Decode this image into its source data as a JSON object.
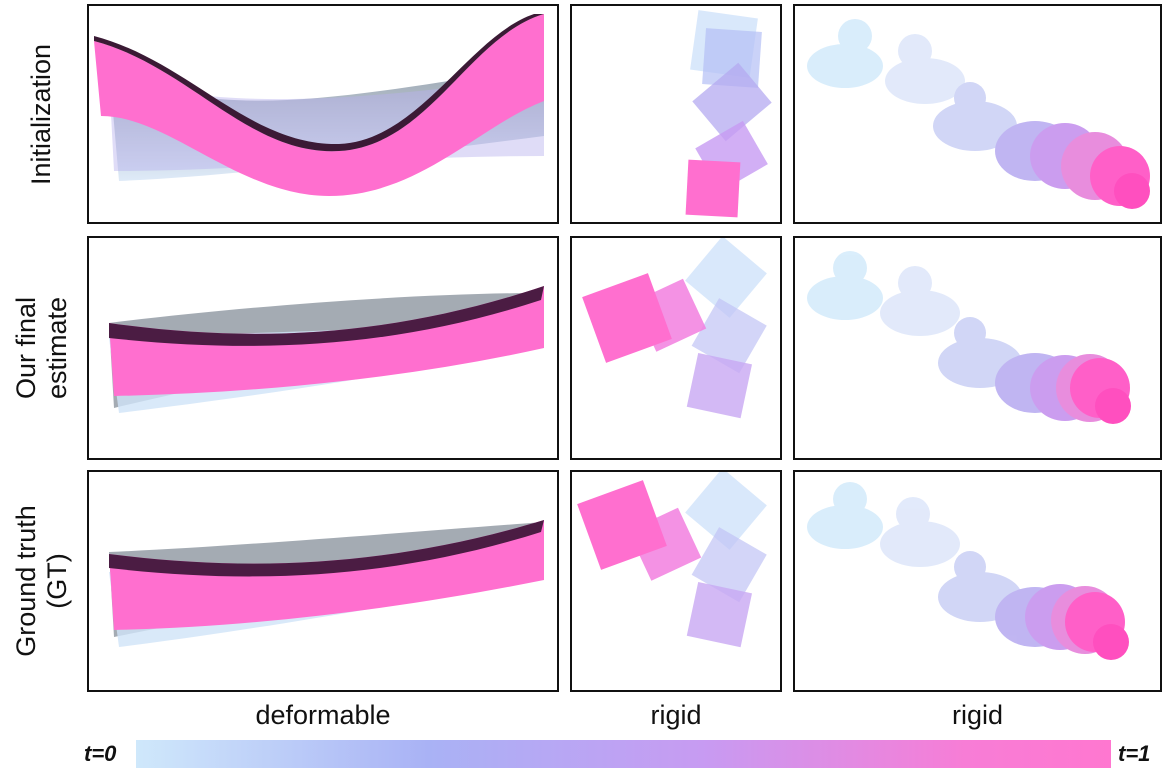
{
  "row_labels": [
    {
      "lines": [
        "Initialization"
      ]
    },
    {
      "lines": [
        "Our final",
        "estimate"
      ]
    },
    {
      "lines": [
        "Ground truth",
        "(GT)"
      ]
    }
  ],
  "column_labels": [
    "deformable",
    "rigid",
    "rigid"
  ],
  "colorbar": {
    "start_label": "t=0",
    "end_label": "t=1",
    "start_color": "#cfe8fb",
    "end_color": "#ff77d0"
  },
  "colors": {
    "final_state": "#ff6fcf",
    "initial_state": "#cfe8fb",
    "mid_state": "#b9a8f3",
    "border": "#111111"
  }
}
